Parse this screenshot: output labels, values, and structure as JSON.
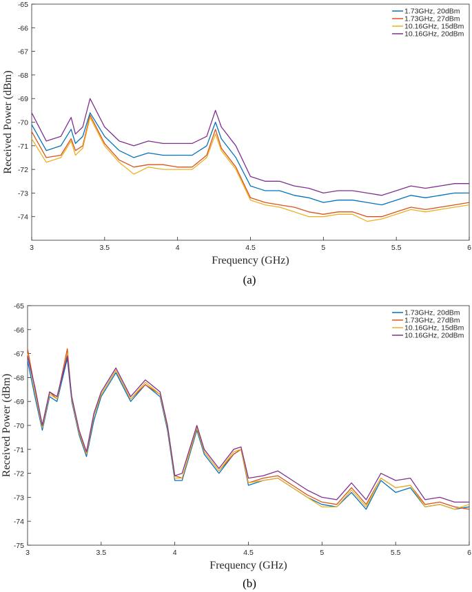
{
  "colors": {
    "axis": "#262626",
    "series": [
      "#0072BD",
      "#D95319",
      "#EDB120",
      "#7E2F8E"
    ]
  },
  "chart_data": [
    {
      "type": "line",
      "caption": "(a)",
      "xlabel": "Frequency (GHz)",
      "ylabel": "Received Power (dBm)",
      "xlim": [
        3,
        6
      ],
      "ylim": [
        -75,
        -65
      ],
      "xticks": [
        "3",
        "3.5",
        "4",
        "4.5",
        "5",
        "5.5",
        "6"
      ],
      "yticks": [
        "-65",
        "-66",
        "-67",
        "-68",
        "-69",
        "-70",
        "-71",
        "-72",
        "-73",
        "-74"
      ],
      "legend_position": "top-right",
      "grid": false,
      "x": [
        3.0,
        3.1,
        3.2,
        3.27,
        3.3,
        3.35,
        3.4,
        3.5,
        3.6,
        3.7,
        3.8,
        3.9,
        4.0,
        4.1,
        4.2,
        4.26,
        4.3,
        4.4,
        4.5,
        4.6,
        4.7,
        4.8,
        4.9,
        5.0,
        5.1,
        5.2,
        5.3,
        5.4,
        5.5,
        5.6,
        5.7,
        5.8,
        5.9,
        6.0
      ],
      "series": [
        {
          "name": "1.73GHz, 20dBm",
          "values": [
            -70.1,
            -71.2,
            -71.0,
            -70.3,
            -70.9,
            -70.6,
            -69.6,
            -70.6,
            -71.2,
            -71.5,
            -71.3,
            -71.4,
            -71.4,
            -71.4,
            -71.0,
            -70.0,
            -70.7,
            -71.5,
            -72.7,
            -72.9,
            -72.9,
            -73.1,
            -73.2,
            -73.4,
            -73.3,
            -73.3,
            -73.4,
            -73.5,
            -73.3,
            -73.1,
            -73.2,
            -73.1,
            -73.0,
            -73.0
          ]
        },
        {
          "name": "1.73GHz, 27dBm",
          "values": [
            -70.4,
            -71.5,
            -71.4,
            -70.7,
            -71.2,
            -71.0,
            -69.7,
            -70.9,
            -71.6,
            -71.9,
            -71.8,
            -71.8,
            -71.9,
            -71.9,
            -71.4,
            -70.3,
            -71.1,
            -71.9,
            -73.2,
            -73.4,
            -73.5,
            -73.6,
            -73.8,
            -73.9,
            -73.8,
            -73.8,
            -74.0,
            -74.0,
            -73.8,
            -73.6,
            -73.7,
            -73.6,
            -73.5,
            -73.4
          ]
        },
        {
          "name": "10.16GHz, 15dBm",
          "values": [
            -70.7,
            -71.7,
            -71.5,
            -70.8,
            -71.4,
            -71.1,
            -69.8,
            -71.0,
            -71.7,
            -72.2,
            -71.9,
            -72.0,
            -72.0,
            -72.0,
            -71.5,
            -70.5,
            -71.2,
            -72.0,
            -73.3,
            -73.5,
            -73.6,
            -73.8,
            -74.0,
            -74.0,
            -73.9,
            -73.9,
            -74.2,
            -74.1,
            -73.9,
            -73.7,
            -73.8,
            -73.7,
            -73.6,
            -73.5
          ]
        },
        {
          "name": "10.16GHz, 20dBm",
          "values": [
            -69.6,
            -70.8,
            -70.6,
            -69.8,
            -70.5,
            -70.2,
            -69.0,
            -70.2,
            -70.8,
            -71.0,
            -70.8,
            -70.9,
            -70.9,
            -70.9,
            -70.6,
            -69.5,
            -70.2,
            -71.0,
            -72.3,
            -72.5,
            -72.5,
            -72.7,
            -72.8,
            -73.0,
            -72.9,
            -72.9,
            -73.0,
            -73.1,
            -72.9,
            -72.7,
            -72.8,
            -72.7,
            -72.6,
            -72.6
          ]
        }
      ]
    },
    {
      "type": "line",
      "caption": "(b)",
      "xlabel": "Frequency (GHz)",
      "ylabel": "Received Power (dBm)",
      "xlim": [
        3,
        6
      ],
      "ylim": [
        -75,
        -65
      ],
      "xticks": [
        "3",
        "3.5",
        "4",
        "4.5",
        "5",
        "5.5",
        "6"
      ],
      "yticks": [
        "-65",
        "-66",
        "-67",
        "-68",
        "-69",
        "-70",
        "-71",
        "-72",
        "-73",
        "-74",
        "-75"
      ],
      "legend_position": "top-right",
      "grid": false,
      "x": [
        3.0,
        3.05,
        3.1,
        3.15,
        3.2,
        3.27,
        3.3,
        3.35,
        3.4,
        3.45,
        3.5,
        3.6,
        3.7,
        3.8,
        3.9,
        3.95,
        4.0,
        4.05,
        4.15,
        4.2,
        4.3,
        4.4,
        4.45,
        4.5,
        4.6,
        4.7,
        4.8,
        4.9,
        5.0,
        5.1,
        5.2,
        5.3,
        5.4,
        5.5,
        5.6,
        5.7,
        5.8,
        5.9,
        6.0
      ],
      "series": [
        {
          "name": "1.73GHz, 20dBm",
          "values": [
            -67.3,
            -68.8,
            -70.2,
            -68.8,
            -69.0,
            -67.2,
            -69.0,
            -70.4,
            -71.3,
            -69.8,
            -68.8,
            -67.8,
            -69.0,
            -68.3,
            -68.8,
            -70.2,
            -72.3,
            -72.3,
            -70.2,
            -71.2,
            -72.0,
            -71.2,
            -71.0,
            -72.5,
            -72.3,
            -72.2,
            -72.6,
            -73.0,
            -73.3,
            -73.4,
            -72.8,
            -73.5,
            -72.3,
            -72.8,
            -72.6,
            -73.4,
            -73.3,
            -73.5,
            -73.4
          ]
        },
        {
          "name": "1.73GHz, 27dBm",
          "values": [
            -66.8,
            -68.5,
            -70.0,
            -68.6,
            -68.9,
            -66.8,
            -68.9,
            -70.3,
            -71.2,
            -69.6,
            -68.7,
            -67.7,
            -68.9,
            -68.3,
            -68.7,
            -70.0,
            -72.1,
            -72.2,
            -70.1,
            -71.1,
            -71.9,
            -71.2,
            -71.0,
            -72.4,
            -72.2,
            -72.1,
            -72.5,
            -72.9,
            -73.2,
            -73.3,
            -72.6,
            -73.3,
            -72.2,
            -72.6,
            -72.5,
            -73.3,
            -73.2,
            -73.4,
            -73.5
          ]
        },
        {
          "name": "10.16GHz, 15dBm",
          "values": [
            -67.0,
            -68.6,
            -70.1,
            -68.7,
            -68.9,
            -67.0,
            -68.9,
            -70.3,
            -71.2,
            -69.6,
            -68.7,
            -67.7,
            -68.9,
            -68.2,
            -68.7,
            -70.1,
            -72.2,
            -72.2,
            -70.1,
            -71.1,
            -71.9,
            -71.1,
            -71.0,
            -72.4,
            -72.3,
            -72.2,
            -72.6,
            -73.0,
            -73.4,
            -73.4,
            -72.7,
            -73.4,
            -72.2,
            -72.6,
            -72.5,
            -73.4,
            -73.3,
            -73.5,
            -73.3
          ]
        },
        {
          "name": "10.16GHz, 20dBm",
          "values": [
            -67.1,
            -68.4,
            -70.0,
            -68.6,
            -68.8,
            -67.1,
            -68.8,
            -70.2,
            -71.1,
            -69.5,
            -68.6,
            -67.6,
            -68.8,
            -68.1,
            -68.6,
            -70.0,
            -72.1,
            -72.0,
            -70.0,
            -71.0,
            -71.8,
            -71.0,
            -70.9,
            -72.2,
            -72.1,
            -71.9,
            -72.3,
            -72.7,
            -73.0,
            -73.1,
            -72.4,
            -73.1,
            -72.0,
            -72.3,
            -72.2,
            -73.1,
            -73.0,
            -73.2,
            -73.2
          ]
        }
      ]
    }
  ]
}
